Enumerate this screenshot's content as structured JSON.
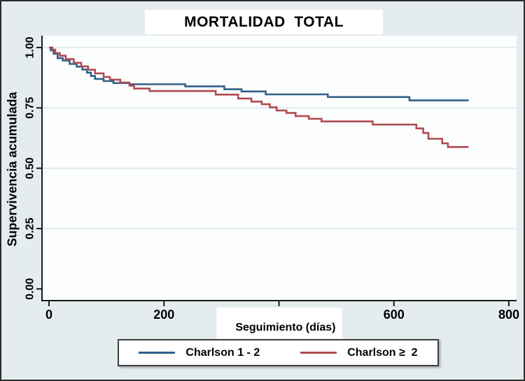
{
  "figure": {
    "title": "MORTALIDAD  TOTAL",
    "x_axis_label": "Seguimiento (días)",
    "y_axis_label": "Supervivencia acumulada"
  },
  "legend": {
    "entries": [
      {
        "label": "Charlson 1 - 2",
        "color": "#31608a"
      },
      {
        "label": "Charlson ≥  2",
        "color": "#ae4c50"
      }
    ]
  },
  "chart_data": {
    "type": "line",
    "subtype": "kaplan-meier-step-function",
    "title": "MORTALIDAD  TOTAL",
    "xlabel": "Seguimiento (días)",
    "ylabel": "Supervivencia acumulada",
    "xlim": [
      0,
      800
    ],
    "ylim": [
      0.0,
      1.0
    ],
    "grid": "horizontal-only",
    "gridline_color": "#d9e8f0",
    "plot_background": "#fcfdfd",
    "outer_background": "#e4ecef",
    "legend_position": "bottom",
    "xticks": [
      {
        "v": 0,
        "label": "0"
      },
      {
        "v": 200,
        "label": "200"
      },
      {
        "v": 400,
        "label": "400"
      },
      {
        "v": 600,
        "label": "600"
      },
      {
        "v": 800,
        "label": "800"
      }
    ],
    "yticks": [
      {
        "v": 0.0,
        "label": "0.00"
      },
      {
        "v": 0.25,
        "label": "0.25"
      },
      {
        "v": 0.5,
        "label": "0.50"
      },
      {
        "v": 0.75,
        "label": "0.75"
      },
      {
        "v": 1.0,
        "label": "1.00"
      }
    ],
    "series": [
      {
        "name": "Charlson 1 - 2",
        "color": "#31608a",
        "points": [
          [
            0,
            1.0
          ],
          [
            3,
            0.988
          ],
          [
            8,
            0.974
          ],
          [
            15,
            0.956
          ],
          [
            24,
            0.946
          ],
          [
            36,
            0.932
          ],
          [
            48,
            0.921
          ],
          [
            58,
            0.909
          ],
          [
            66,
            0.896
          ],
          [
            73,
            0.882
          ],
          [
            80,
            0.87
          ],
          [
            95,
            0.861
          ],
          [
            112,
            0.853
          ],
          [
            140,
            0.848
          ],
          [
            237,
            0.839
          ],
          [
            305,
            0.827
          ],
          [
            335,
            0.818
          ],
          [
            377,
            0.806
          ],
          [
            485,
            0.795
          ],
          [
            627,
            0.781
          ],
          [
            730,
            0.781
          ]
        ]
      },
      {
        "name": "Charlson ≥ 2",
        "color": "#ae4c50",
        "points": [
          [
            0,
            1.0
          ],
          [
            6,
            0.991
          ],
          [
            11,
            0.977
          ],
          [
            19,
            0.966
          ],
          [
            29,
            0.952
          ],
          [
            43,
            0.937
          ],
          [
            56,
            0.922
          ],
          [
            68,
            0.908
          ],
          [
            80,
            0.893
          ],
          [
            95,
            0.878
          ],
          [
            106,
            0.867
          ],
          [
            124,
            0.855
          ],
          [
            140,
            0.842
          ],
          [
            148,
            0.83
          ],
          [
            175,
            0.82
          ],
          [
            290,
            0.805
          ],
          [
            329,
            0.789
          ],
          [
            352,
            0.776
          ],
          [
            370,
            0.765
          ],
          [
            384,
            0.752
          ],
          [
            396,
            0.739
          ],
          [
            413,
            0.729
          ],
          [
            429,
            0.716
          ],
          [
            452,
            0.705
          ],
          [
            474,
            0.694
          ],
          [
            563,
            0.681
          ],
          [
            639,
            0.665
          ],
          [
            651,
            0.646
          ],
          [
            660,
            0.622
          ],
          [
            684,
            0.603
          ],
          [
            694,
            0.588
          ],
          [
            730,
            0.588
          ]
        ]
      }
    ]
  }
}
